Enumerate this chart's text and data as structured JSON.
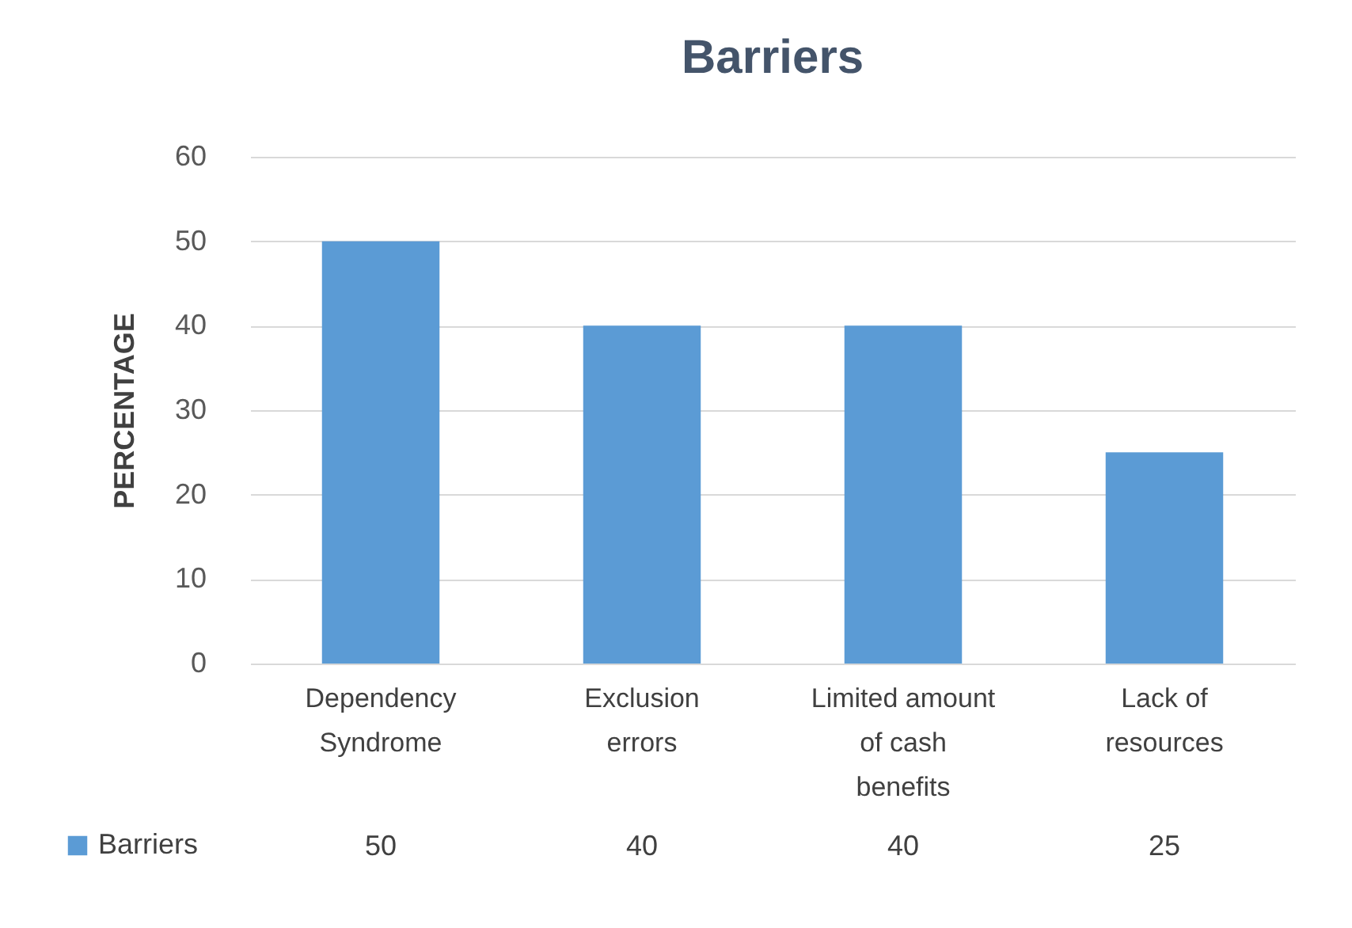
{
  "chart_data": {
    "type": "bar",
    "title": "Barriers",
    "ylabel": "PERCENTAGE",
    "categories": [
      "Dependency Syndrome",
      "Exclusion errors",
      "Limited amount of cash benefits",
      "Lack of resources"
    ],
    "series": [
      {
        "name": "Barriers",
        "color": "#5b9bd5",
        "values": [
          50,
          40,
          40,
          25
        ]
      }
    ],
    "ylim": [
      0,
      60
    ],
    "yticks": [
      0,
      10,
      20,
      30,
      40,
      50,
      60
    ],
    "grid": "y",
    "legend": "bottom left",
    "data_labels": true
  }
}
